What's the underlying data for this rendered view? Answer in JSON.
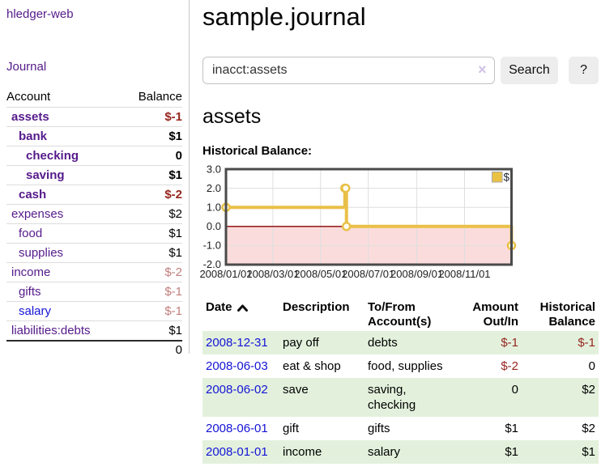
{
  "app": {
    "title": "hledger-web"
  },
  "sidebar": {
    "journal_link": "Journal",
    "accounts": {
      "header_account": "Account",
      "header_balance": "Balance",
      "rows": [
        {
          "name": "assets",
          "balance": "$-1"
        },
        {
          "name": "bank",
          "balance": "$1"
        },
        {
          "name": "checking",
          "balance": "0"
        },
        {
          "name": "saving",
          "balance": "$1"
        },
        {
          "name": "cash",
          "balance": "$-2"
        },
        {
          "name": "expenses",
          "balance": "$2"
        },
        {
          "name": "food",
          "balance": "$1"
        },
        {
          "name": "supplies",
          "balance": "$1"
        },
        {
          "name": "income",
          "balance": "$-2"
        },
        {
          "name": "gifts",
          "balance": "$-1"
        },
        {
          "name": "salary",
          "balance": "$-1"
        },
        {
          "name": "liabilities:debts",
          "balance": "$1"
        }
      ],
      "total": "0"
    }
  },
  "main": {
    "title": "sample.journal",
    "search": {
      "value": "inacct:assets",
      "clear_icon": "×",
      "button_label": "Search",
      "help_label": "?"
    },
    "account_heading": "assets",
    "chart_label": "Historical Balance:"
  },
  "chart_data": {
    "type": "line",
    "title": "Historical Balance",
    "step": "after",
    "series": [
      {
        "name": "$",
        "points": [
          [
            "2008-01-01",
            1
          ],
          [
            "2008-06-01",
            2
          ],
          [
            "2008-06-02",
            2
          ],
          [
            "2008-06-03",
            0
          ],
          [
            "2008-12-31",
            -1
          ]
        ]
      }
    ],
    "xrange": [
      "2008-01-01",
      "2008-12-31"
    ],
    "ylim": [
      -2,
      3
    ],
    "yticks": [
      "3.0",
      "2.0",
      "1.0",
      "0.0",
      "-1.0",
      "-2.0"
    ],
    "xticks": [
      "2008/01/01",
      "2008/03/01",
      "2008/05/01",
      "2008/07/01",
      "2008/09/01",
      "2008/11/01"
    ],
    "legend": {
      "label": "$",
      "position": "top-right"
    },
    "grid": true,
    "line_color": "#e9c047",
    "negative_region_color": "#fbdcdc",
    "zero_line_color": "#8b0000"
  },
  "transactions": {
    "headers": {
      "date": "Date",
      "description": "Description",
      "accounts": "To/From Account(s)",
      "amount": "Amount Out/In",
      "balance": "Historical Balance"
    },
    "rows": [
      {
        "date": "2008-12-31",
        "description": "pay off",
        "accounts": "debts",
        "amount": "$-1",
        "balance": "$-1"
      },
      {
        "date": "2008-06-03",
        "description": "eat & shop",
        "accounts": "food, supplies",
        "amount": "$-2",
        "balance": "0"
      },
      {
        "date": "2008-06-02",
        "description": "save",
        "accounts": "saving, checking",
        "amount": "0",
        "balance": "$2"
      },
      {
        "date": "2008-06-01",
        "description": "gift",
        "accounts": "gifts",
        "amount": "$1",
        "balance": "$2"
      },
      {
        "date": "2008-01-01",
        "description": "income",
        "accounts": "salary",
        "amount": "$1",
        "balance": "$1"
      }
    ]
  }
}
